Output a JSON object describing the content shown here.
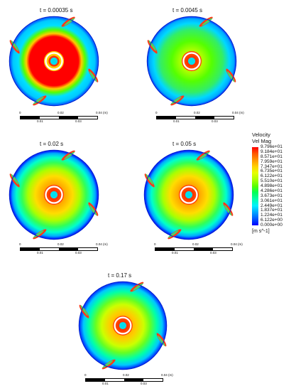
{
  "panels": [
    {
      "title": "t = 0.00035 s",
      "state": "early"
    },
    {
      "title": "t = 0.0045 s",
      "state": "mid"
    },
    {
      "title": "t = 0.02 s",
      "state": "developed"
    },
    {
      "title": "t = 0.05 s",
      "state": "developed"
    },
    {
      "title": "t = 0.17 s",
      "state": "late"
    }
  ],
  "scale_bar": {
    "top_labels": [
      "0",
      "0.02",
      "0.04  (m)"
    ],
    "bottom_labels": [
      "0.01",
      "0.03"
    ]
  },
  "legend": {
    "title": "Velocity",
    "subtitle": "Vel Mag",
    "values": [
      "9.796e+01",
      "9.184e+01",
      "8.571e+01",
      "7.959e+01",
      "7.347e+01",
      "6.735e+01",
      "6.122e+01",
      "5.510e+01",
      "4.898e+01",
      "4.286e+01",
      "3.673e+01",
      "3.061e+01",
      "2.449e+01",
      "1.837e+01",
      "1.224e+01",
      "6.122e+00",
      "0.000e+00"
    ],
    "unit": "[m s^-1]"
  },
  "colors": {
    "max": "#ff0000",
    "high": "#ffa500",
    "mid_high": "#ffff00",
    "mid": "#55ff00",
    "mid_low": "#00ffaa",
    "low": "#00c8ff",
    "min": "#0000ff"
  }
}
